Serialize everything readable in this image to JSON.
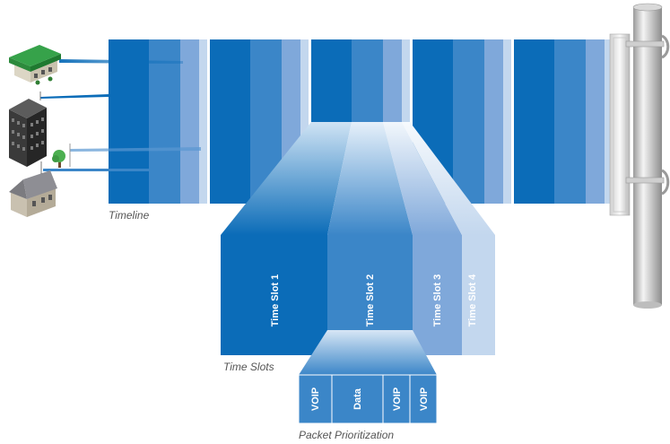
{
  "captions": {
    "timeline": "Timeline",
    "time_slots": "Time Slots",
    "packet_prioritization": "Packet Prioritization"
  },
  "time_slots": [
    "Time Slot 1",
    "Time Slot 2",
    "Time Slot 3",
    "Time Slot 4"
  ],
  "packets": [
    "VOIP",
    "Data",
    "VOIP",
    "VOIP"
  ],
  "colors": {
    "slot1": "#0b6cb8",
    "slot2": "#3b86c8",
    "slot3": "#7fa8da",
    "slot4": "#c3d7ee",
    "funnel_light": "#e9f1fa"
  },
  "icons": [
    "store-icon",
    "office-building-icon",
    "house-icon",
    "tree-icon",
    "pole-antenna-icon"
  ]
}
